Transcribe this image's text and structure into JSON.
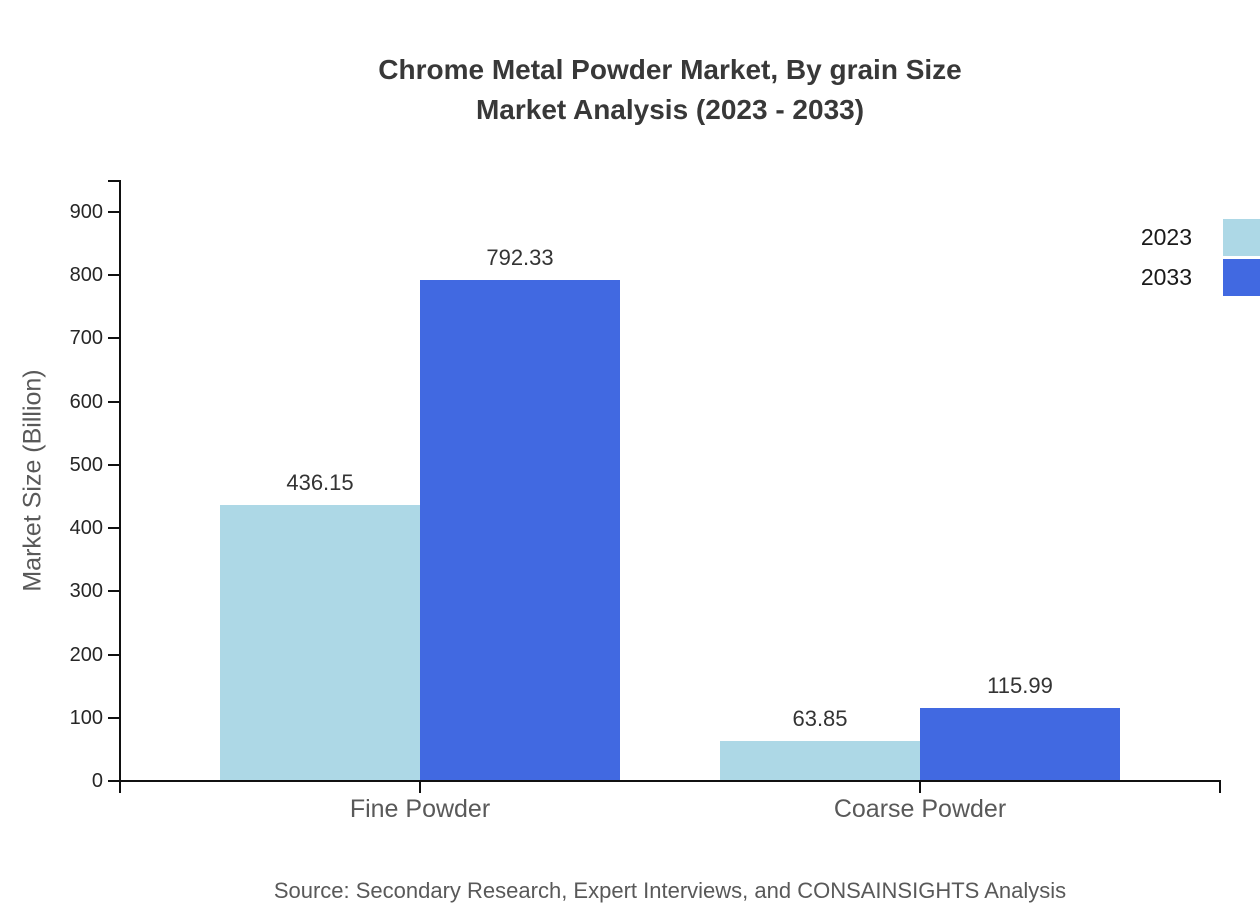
{
  "chart": {
    "title_line1": "Chrome Metal Powder Market, By grain Size",
    "title_line2": "Market Analysis (2023 - 2033)",
    "ylabel": "Market Size (Billion)",
    "source": "Source: Secondary Research, Expert Interviews, and CONSAINSIGHTS Analysis"
  },
  "chart_data": {
    "type": "bar",
    "title": "Chrome Metal Powder Market, By grain Size Market Analysis (2023 - 2033)",
    "categories": [
      "Fine Powder",
      "Coarse Powder"
    ],
    "series": [
      {
        "name": "2023",
        "color": "#ADD8E6",
        "values": [
          436.15,
          63.85
        ]
      },
      {
        "name": "2033",
        "color": "#4169E1",
        "values": [
          792.33,
          115.99
        ]
      }
    ],
    "xlabel": "",
    "ylabel": "Market Size (Billion)",
    "ylim": [
      0,
      950
    ],
    "yticks": [
      0,
      100,
      200,
      300,
      400,
      500,
      600,
      700,
      800,
      900
    ],
    "grid": false,
    "legend_position": "top-right",
    "value_labels": true,
    "axis_color": "#111111",
    "tick_label_color": "#262626",
    "value_label_color": "#333333",
    "category_label_color": "#595959"
  }
}
